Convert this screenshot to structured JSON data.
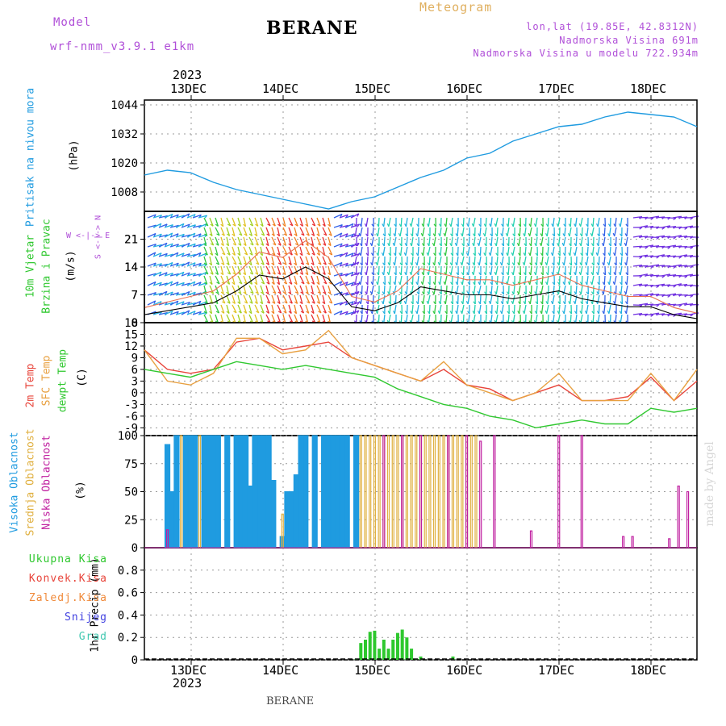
{
  "header": {
    "title": "BERANE",
    "bottom_title": "BERANE",
    "model_label": "Model",
    "model_value": "wrf-nmm_v3.9.1 e1km",
    "meteogram_label": "Meteogram",
    "coords": "lon,lat (19.85E, 42.8312N)",
    "elevation": "Nadmorska Visina 691m",
    "model_elevation": "Nadmorska Visina u modelu 722.934m",
    "watermark": "made by Angel",
    "year": "2023"
  },
  "axis_labels": {
    "pressure_name": "Pritisak na nivou mora",
    "pressure_unit": "(hPa)",
    "wind_name": "10m Vjetar",
    "wind_name2": "Brzina i Pravac",
    "wind_unit": "(m/s)",
    "wind_compass": "W <-|-> E",
    "wind_compass_ns": "S <-|-> N",
    "temp_2m": "2m Temp",
    "temp_sfc": "SFC Temp",
    "temp_dew": "dewpt Temp",
    "temp_unit": "(C)",
    "cloud_high": "Visoka Oblacnost",
    "cloud_mid": "Srednja Oblacnost",
    "cloud_low": "Niska Oblacnost",
    "cloud_unit": "(%)",
    "precip_unit": "1hr Precip (mm)"
  },
  "precip_legend": [
    {
      "label": "Ukupna Kisa",
      "color": "#2ec82e"
    },
    {
      "label": "Konvek.Kisa",
      "color": "#e8443a"
    },
    {
      "label": "Zaledj.Kisa",
      "color": "#f08a3a"
    },
    {
      "label": "Snijeg",
      "color": "#4040e0"
    },
    {
      "label": "Grad",
      "color": "#40c8b0"
    }
  ],
  "colors": {
    "pressure": "#1f9be0",
    "temp_2m": "#e8443a",
    "temp_sfc": "#e8a040",
    "temp_dew": "#30c830",
    "cloud_high": "#1f9be0",
    "cloud_mid": "#e0b040",
    "cloud_low": "#c020a0",
    "precip": "#2ec82e"
  },
  "chart_data": [
    {
      "type": "line",
      "name": "pressure",
      "x": [
        0,
        0.25,
        0.5,
        0.75,
        1,
        1.25,
        1.5,
        1.75,
        2,
        2.25,
        2.5,
        2.75,
        3,
        3.25,
        3.5,
        3.75,
        4,
        4.25,
        4.5,
        4.75,
        5,
        5.25,
        5.5,
        5.75,
        6
      ],
      "values": [
        1015,
        1017,
        1016,
        1012,
        1009,
        1007,
        1005,
        1003,
        1001,
        1004,
        1006,
        1010,
        1014,
        1017,
        1022,
        1024,
        1029,
        1032,
        1035,
        1036,
        1039,
        1041,
        1040,
        1039,
        1035
      ],
      "ylim": [
        1000,
        1046
      ],
      "yticks": [
        1008,
        1020,
        1032,
        1044
      ]
    },
    {
      "type": "line",
      "name": "wind_speed",
      "x": [
        0,
        0.25,
        0.5,
        0.75,
        1,
        1.25,
        1.5,
        1.75,
        2,
        2.25,
        2.5,
        2.75,
        3,
        3.25,
        3.5,
        3.75,
        4,
        4.25,
        4.5,
        4.75,
        5,
        5.25,
        5.5,
        5.75,
        6
      ],
      "values": [
        2,
        3,
        4,
        5,
        8,
        12,
        11,
        14,
        11,
        4,
        3,
        5,
        9,
        8,
        7,
        7,
        6,
        7,
        8,
        6,
        5,
        4,
        4,
        2,
        1
      ],
      "ylim": [
        0,
        28
      ],
      "yticks": [
        0,
        7,
        14,
        21
      ]
    },
    {
      "type": "line",
      "name": "temperature",
      "ylim": [
        -11,
        18
      ],
      "yticks": [
        -9,
        -6,
        -3,
        0,
        3,
        6,
        9,
        12,
        15,
        18
      ],
      "series": [
        {
          "name": "2m Temp",
          "x": [
            0,
            0.25,
            0.5,
            0.75,
            1,
            1.25,
            1.5,
            1.75,
            2,
            2.25,
            2.5,
            2.75,
            3,
            3.25,
            3.5,
            3.75,
            4,
            4.25,
            4.5,
            4.75,
            5,
            5.25,
            5.5,
            5.75,
            6
          ],
          "values": [
            11,
            6,
            5,
            6,
            13,
            14,
            11,
            12,
            13,
            9,
            7,
            5,
            3,
            6,
            2,
            1,
            -2,
            0,
            2,
            -2,
            -2,
            -1,
            4,
            -2,
            3
          ]
        },
        {
          "name": "SFC Temp",
          "x": [
            0,
            0.25,
            0.5,
            0.75,
            1,
            1.25,
            1.5,
            1.75,
            2,
            2.25,
            2.5,
            2.75,
            3,
            3.25,
            3.5,
            3.75,
            4,
            4.25,
            4.5,
            4.75,
            5,
            5.25,
            5.5,
            5.75,
            6
          ],
          "values": [
            11,
            3,
            2,
            5,
            14,
            14,
            10,
            11,
            16,
            9,
            7,
            5,
            3,
            8,
            2,
            0,
            -2,
            0,
            5,
            -2,
            -2,
            -2,
            5,
            -2,
            6
          ]
        },
        {
          "name": "dewpt Temp",
          "x": [
            0,
            0.25,
            0.5,
            0.75,
            1,
            1.25,
            1.5,
            1.75,
            2,
            2.25,
            2.5,
            2.75,
            3,
            3.25,
            3.5,
            3.75,
            4,
            4.25,
            4.5,
            4.75,
            5,
            5.25,
            5.5,
            5.75,
            6
          ],
          "values": [
            6,
            5,
            4,
            6,
            8,
            7,
            6,
            7,
            6,
            5,
            4,
            1,
            -1,
            -3,
            -4,
            -6,
            -7,
            -9,
            -8,
            -7,
            -8,
            -8,
            -4,
            -5,
            -4
          ]
        }
      ]
    },
    {
      "type": "bar",
      "name": "cloud_cover",
      "ylim": [
        0,
        100
      ],
      "yticks": [
        0,
        25,
        50,
        75,
        100
      ],
      "series": [
        {
          "name": "Visoka Oblacnost",
          "x": [
            0.25,
            0.3,
            0.35,
            0.45,
            0.5,
            0.55,
            0.65,
            0.7,
            0.75,
            0.8,
            0.9,
            1.0,
            1.05,
            1.1,
            1.15,
            1.2,
            1.25,
            1.3,
            1.35,
            1.4,
            1.5,
            1.55,
            1.6,
            1.65,
            1.7,
            1.75,
            1.85,
            1.95,
            2.0,
            2.05,
            2.1,
            2.15,
            2.2,
            2.3
          ],
          "values": [
            92,
            50,
            100,
            100,
            100,
            100,
            100,
            100,
            100,
            100,
            100,
            100,
            100,
            100,
            55,
            100,
            100,
            100,
            100,
            60,
            10,
            50,
            50,
            65,
            100,
            100,
            100,
            100,
            100,
            100,
            100,
            100,
            100,
            100
          ]
        },
        {
          "name": "Srednja Oblacnost",
          "x": [
            0.4,
            0.6,
            1.5,
            2.35,
            2.4,
            2.45,
            2.5,
            2.55,
            2.6,
            2.65,
            2.7,
            2.75,
            2.8,
            2.85,
            2.9,
            2.95,
            3.0,
            3.05,
            3.1,
            3.15,
            3.2,
            3.25,
            3.3,
            3.35,
            3.4,
            3.45,
            3.5,
            3.55,
            3.6
          ],
          "values": [
            100,
            100,
            30,
            100,
            100,
            100,
            100,
            100,
            100,
            100,
            100,
            100,
            100,
            100,
            100,
            100,
            100,
            100,
            100,
            100,
            100,
            100,
            100,
            100,
            100,
            100,
            100,
            100,
            100
          ]
        },
        {
          "name": "Niska Oblacnost",
          "x": [
            0.25,
            2.6,
            2.8,
            3.0,
            3.3,
            3.5,
            3.65,
            3.8,
            4.2,
            4.5,
            4.75,
            5.2,
            5.3,
            5.7,
            5.8,
            5.9
          ],
          "values": [
            16,
            100,
            100,
            100,
            100,
            100,
            95,
            100,
            15,
            100,
            100,
            10,
            10,
            8,
            55,
            50
          ]
        }
      ]
    },
    {
      "type": "bar",
      "name": "precipitation",
      "ylim": [
        0,
        1
      ],
      "yticks": [
        0,
        0.2,
        0.4,
        0.6,
        0.8
      ],
      "series": [
        {
          "name": "Ukupna Kisa",
          "x": [
            2.3,
            2.35,
            2.4,
            2.45,
            2.5,
            2.55,
            2.6,
            2.65,
            2.7,
            2.75,
            2.8,
            2.85,
            2.9,
            2.95,
            3.0,
            3.35
          ],
          "values": [
            0.01,
            0.15,
            0.18,
            0.25,
            0.26,
            0.1,
            0.18,
            0.1,
            0.18,
            0.24,
            0.27,
            0.2,
            0.1,
            0.01,
            0.03,
            0.03
          ]
        }
      ]
    }
  ],
  "days": [
    "13DEC",
    "14DEC",
    "15DEC",
    "16DEC",
    "17DEC",
    "18DEC"
  ]
}
